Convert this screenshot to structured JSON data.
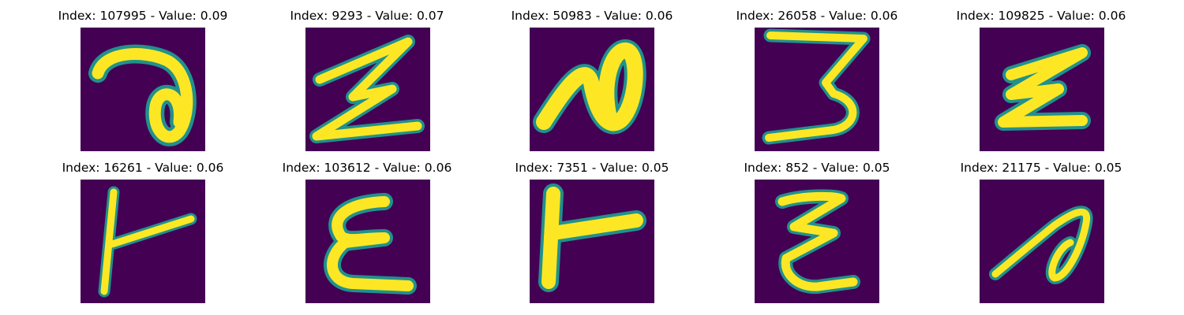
{
  "figure": {
    "panels": [
      {
        "title": "Index: 107995 - Value: 0.09",
        "image": "handwritten-glyph-loop"
      },
      {
        "title": "Index: 9293 - Value: 0.07",
        "image": "handwritten-glyph-zigzag"
      },
      {
        "title": "Index: 50983 - Value: 0.06",
        "image": "handwritten-glyph-hook"
      },
      {
        "title": "Index: 26058 - Value: 0.06",
        "image": "handwritten-glyph-three"
      },
      {
        "title": "Index: 109825 - Value: 0.06",
        "image": "handwritten-glyph-e-slant"
      },
      {
        "title": "Index: 16261 - Value: 0.06",
        "image": "handwritten-glyph-t-side"
      },
      {
        "title": "Index: 103612 - Value: 0.06",
        "image": "handwritten-glyph-epsilon"
      },
      {
        "title": "Index: 7351 - Value: 0.05",
        "image": "handwritten-glyph-r-block"
      },
      {
        "title": "Index: 852 - Value: 0.05",
        "image": "handwritten-glyph-z-curly"
      },
      {
        "title": "Index: 21175 - Value: 0.05",
        "image": "handwritten-glyph-hook-thin"
      }
    ],
    "colors": {
      "background": "#440154",
      "stroke": "#fde725",
      "edge": "#21918c"
    }
  }
}
